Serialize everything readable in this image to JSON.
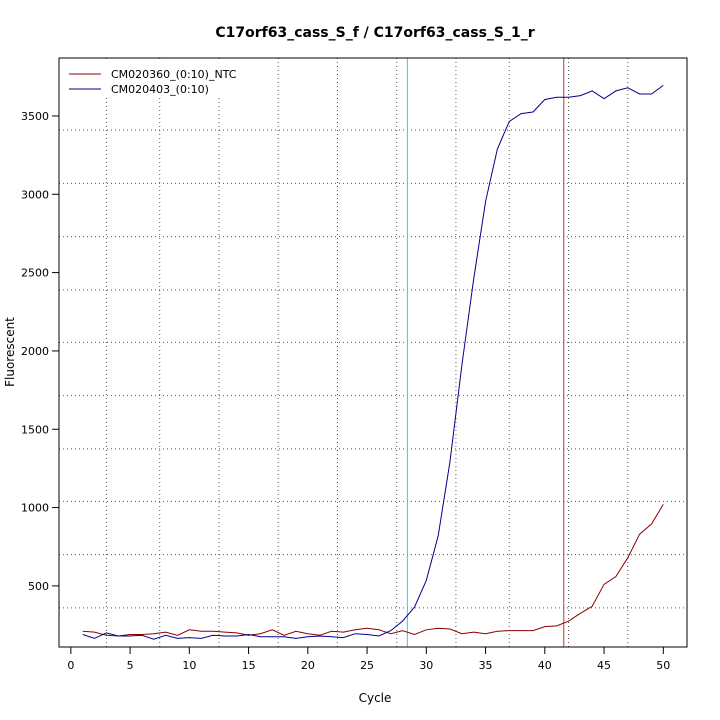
{
  "chart_data": {
    "type": "line",
    "title": "C17orf63_cass_S_f / C17orf63_cass_S_1_r",
    "xlabel": "Cycle",
    "ylabel": "Fluorescent",
    "xlim": [
      -1.0,
      52.0
    ],
    "ylim": [
      110,
      3870
    ],
    "xticks": [
      0,
      5,
      10,
      15,
      20,
      25,
      30,
      35,
      40,
      45,
      50
    ],
    "yticks": [
      500,
      1000,
      1500,
      2000,
      2500,
      3000,
      3500
    ],
    "grid_x": [
      3,
      7.5,
      12.5,
      17.5,
      22.5,
      27.5,
      32.5,
      37,
      42,
      47
    ],
    "grid_y": [
      360,
      700,
      1040,
      1375,
      1715,
      2055,
      2390,
      2730,
      3070,
      3410
    ],
    "vlines": [
      {
        "x": 28.4,
        "color": "#00e5ee"
      },
      {
        "x": 41.6,
        "color": "#cd3333"
      }
    ],
    "legend_position": "top-left",
    "x": [
      1,
      2,
      3,
      4,
      5,
      6,
      7,
      8,
      9,
      10,
      11,
      12,
      13,
      14,
      15,
      16,
      17,
      18,
      19,
      20,
      21,
      22,
      23,
      24,
      25,
      26,
      27,
      28,
      29,
      30,
      31,
      32,
      33,
      34,
      35,
      36,
      37,
      38,
      39,
      40,
      41,
      42,
      43,
      44,
      45,
      46,
      47,
      48,
      49,
      50
    ],
    "series": [
      {
        "name": "CM020360_(0:10)_NTC",
        "color": "#8b0000",
        "values": [
          210,
          205,
          185,
          180,
          190,
          190,
          195,
          205,
          185,
          220,
          210,
          210,
          205,
          200,
          185,
          195,
          220,
          185,
          210,
          195,
          185,
          210,
          205,
          220,
          230,
          220,
          195,
          215,
          190,
          220,
          230,
          225,
          195,
          205,
          195,
          210,
          215,
          215,
          215,
          240,
          245,
          275,
          325,
          370,
          510,
          560,
          680,
          830,
          895,
          1020
        ]
      },
      {
        "name": "CM020403_(0:10)",
        "color": "#00008b",
        "values": [
          190,
          165,
          200,
          180,
          180,
          185,
          160,
          185,
          165,
          170,
          165,
          185,
          180,
          180,
          190,
          175,
          175,
          175,
          165,
          175,
          180,
          175,
          170,
          195,
          190,
          180,
          215,
          275,
          365,
          535,
          820,
          1295,
          1910,
          2460,
          2955,
          3290,
          3465,
          3515,
          3525,
          3605,
          3620,
          3620,
          3630,
          3660,
          3610,
          3660,
          3680,
          3640,
          3640,
          3695
        ]
      }
    ]
  }
}
